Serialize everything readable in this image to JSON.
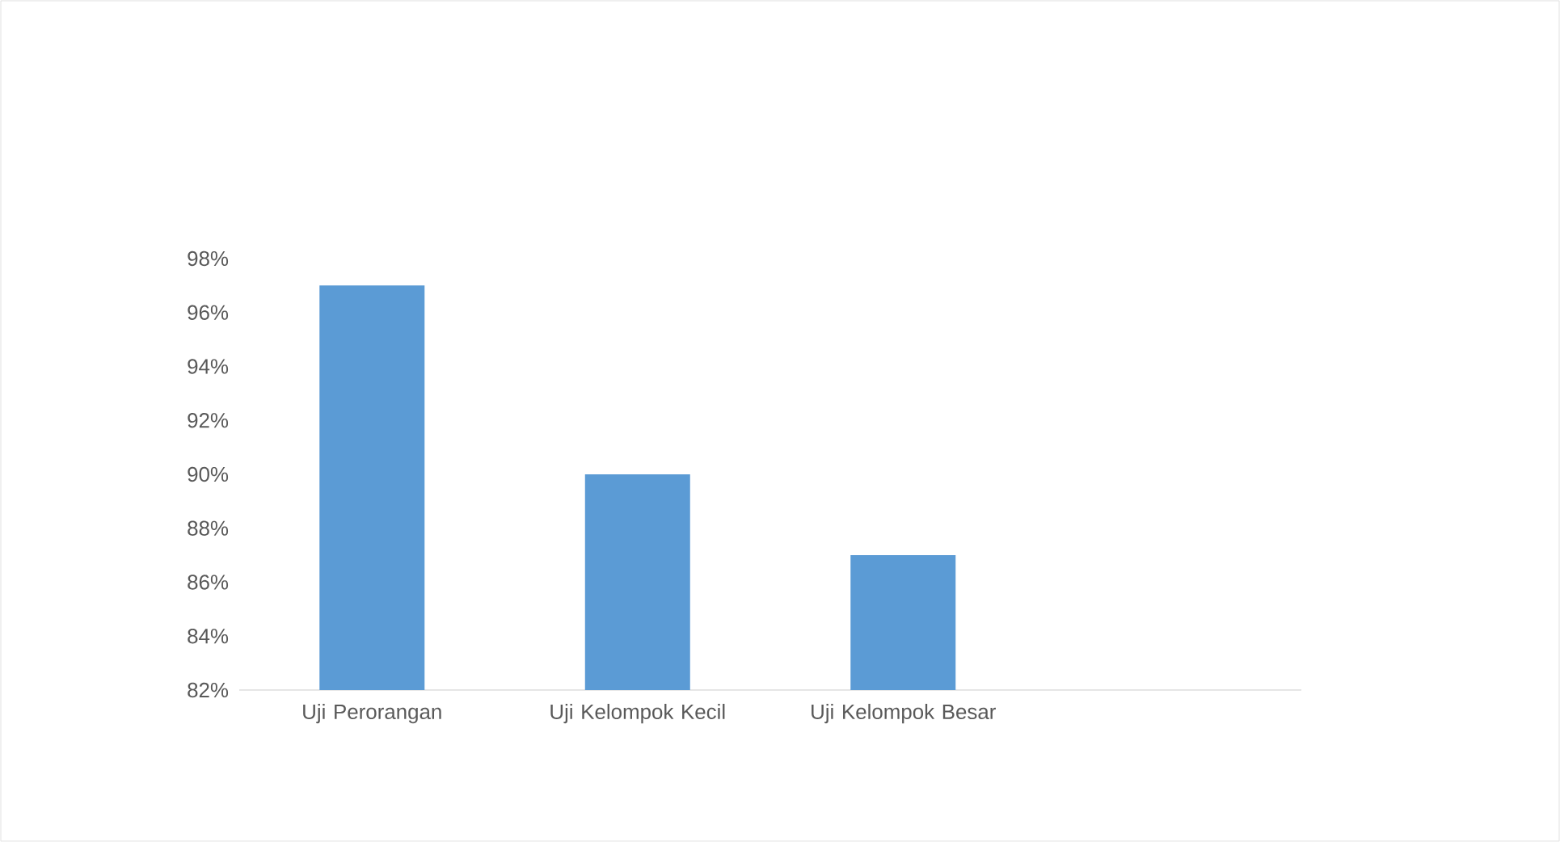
{
  "chart_data": {
    "type": "bar",
    "categories": [
      "Uji Perorangan",
      "Uji Kelompok Kecil",
      "Uji Kelompok Besar",
      null
    ],
    "values": [
      97,
      90,
      87,
      null
    ],
    "color": "#5b9bd5",
    "ylim": [
      82,
      98
    ],
    "yticks": [
      {
        "value": 82,
        "label": "82%"
      },
      {
        "value": 84,
        "label": "84%"
      },
      {
        "value": 86,
        "label": "86%"
      },
      {
        "value": 88,
        "label": "88%"
      },
      {
        "value": 90,
        "label": "90%"
      },
      {
        "value": 92,
        "label": "92%"
      },
      {
        "value": 94,
        "label": "94%"
      },
      {
        "value": 96,
        "label": "96%"
      },
      {
        "value": 98,
        "label": "98%"
      }
    ],
    "grid": false
  }
}
